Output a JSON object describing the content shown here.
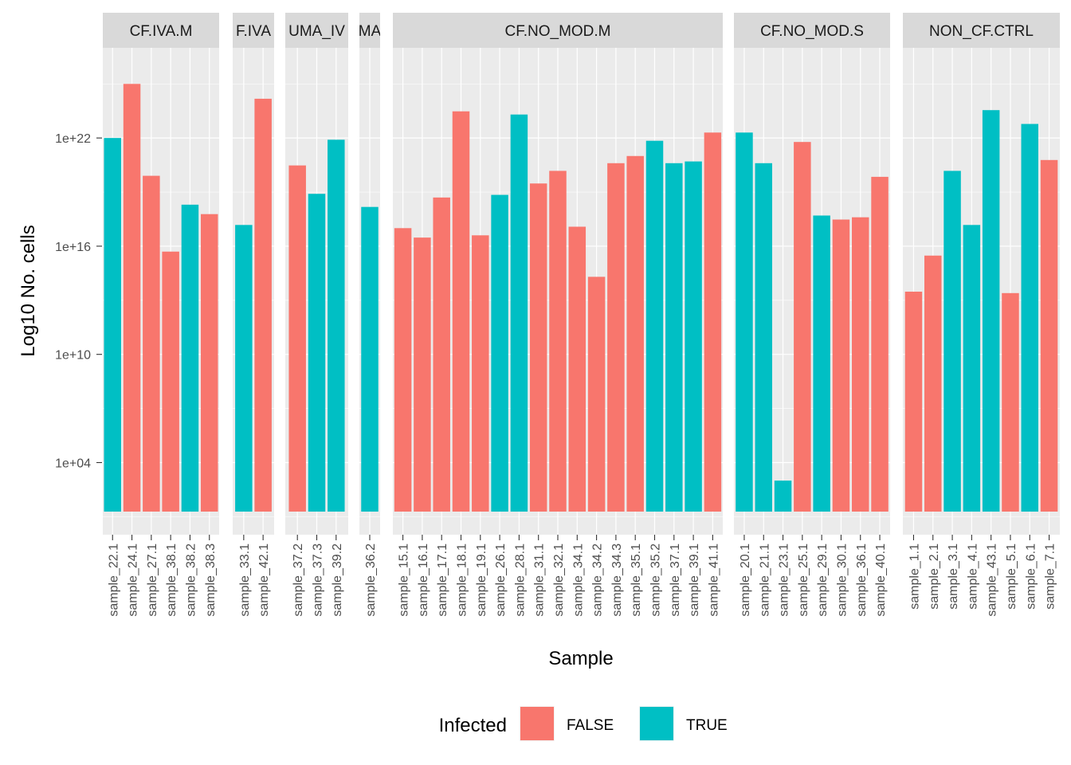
{
  "chart_data": {
    "type": "bar",
    "title": "",
    "xlabel": "Sample",
    "ylabel": "Log10 No. cells",
    "y_scale": "log10",
    "ylim": [
      1,
      1e+27
    ],
    "y_ticks": [
      {
        "value": 10000.0,
        "label": "1e+04"
      },
      {
        "value": 10000000000.0,
        "label": "1e+10"
      },
      {
        "value": 1e+16,
        "label": "1e+16"
      },
      {
        "value": 1e+22,
        "label": "1e+22"
      }
    ],
    "grid": true,
    "legend": {
      "title": "Infected",
      "position": "bottom",
      "entries": [
        {
          "label": "FALSE",
          "color": "#F8766D"
        },
        {
          "label": "TRUE",
          "color": "#00BFC4"
        }
      ]
    },
    "facets": [
      {
        "label": "CF.IVA.M",
        "bars": [
          {
            "sample": "sample_22.1",
            "infected": "TRUE",
            "value": 1e+22
          },
          {
            "sample": "sample_24.1",
            "infected": "FALSE",
            "value": 1e+25
          },
          {
            "sample": "sample_27.1",
            "infected": "FALSE",
            "value": 8e+19
          },
          {
            "sample": "sample_38.1",
            "infected": "FALSE",
            "value": 5000000000000000.0
          },
          {
            "sample": "sample_38.2",
            "infected": "TRUE",
            "value": 2e+18
          },
          {
            "sample": "sample_38.3",
            "infected": "FALSE",
            "value": 6e+17
          }
        ]
      },
      {
        "label": "F.IVA",
        "bars": [
          {
            "sample": "sample_33.1",
            "infected": "TRUE",
            "value": 1.5e+17
          },
          {
            "sample": "sample_42.1",
            "infected": "FALSE",
            "value": 1.5e+24
          }
        ]
      },
      {
        "label": "UMA_IV",
        "bars": [
          {
            "sample": "sample_37.2",
            "infected": "FALSE",
            "value": 3e+20
          },
          {
            "sample": "sample_37.3",
            "infected": "TRUE",
            "value": 8e+18
          },
          {
            "sample": "sample_39.2",
            "infected": "TRUE",
            "value": 8e+21
          }
        ]
      },
      {
        "label": "MA",
        "bars": [
          {
            "sample": "sample_36.2",
            "infected": "TRUE",
            "value": 1.5e+18
          }
        ]
      },
      {
        "label": "CF.NO_MOD.M",
        "bars": [
          {
            "sample": "sample_15.1",
            "infected": "FALSE",
            "value": 1e+17
          },
          {
            "sample": "sample_16.1",
            "infected": "FALSE",
            "value": 3e+16
          },
          {
            "sample": "sample_17.1",
            "infected": "FALSE",
            "value": 5e+18
          },
          {
            "sample": "sample_18.1",
            "infected": "FALSE",
            "value": 3e+23
          },
          {
            "sample": "sample_19.1",
            "infected": "FALSE",
            "value": 4e+16
          },
          {
            "sample": "sample_26.1",
            "infected": "TRUE",
            "value": 7e+18
          },
          {
            "sample": "sample_28.1",
            "infected": "TRUE",
            "value": 2e+23
          },
          {
            "sample": "sample_31.1",
            "infected": "FALSE",
            "value": 3e+19
          },
          {
            "sample": "sample_32.1",
            "infected": "FALSE",
            "value": 1.5e+20
          },
          {
            "sample": "sample_34.1",
            "infected": "FALSE",
            "value": 1.2e+17
          },
          {
            "sample": "sample_34.2",
            "infected": "FALSE",
            "value": 200000000000000.0
          },
          {
            "sample": "sample_34.3",
            "infected": "FALSE",
            "value": 4e+20
          },
          {
            "sample": "sample_35.1",
            "infected": "FALSE",
            "value": 1e+21
          },
          {
            "sample": "sample_35.2",
            "infected": "TRUE",
            "value": 7e+21
          },
          {
            "sample": "sample_37.1",
            "infected": "TRUE",
            "value": 4e+20
          },
          {
            "sample": "sample_39.1",
            "infected": "TRUE",
            "value": 5e+20
          },
          {
            "sample": "sample_41.1",
            "infected": "FALSE",
            "value": 2e+22
          }
        ]
      },
      {
        "label": "CF.NO_MOD.S",
        "bars": [
          {
            "sample": "sample_20.1",
            "infected": "TRUE",
            "value": 2e+22
          },
          {
            "sample": "sample_21.1",
            "infected": "TRUE",
            "value": 4e+20
          },
          {
            "sample": "sample_23.1",
            "infected": "TRUE",
            "value": 1000.0
          },
          {
            "sample": "sample_25.1",
            "infected": "FALSE",
            "value": 6e+21
          },
          {
            "sample": "sample_29.1",
            "infected": "TRUE",
            "value": 5e+17
          },
          {
            "sample": "sample_30.1",
            "infected": "FALSE",
            "value": 3e+17
          },
          {
            "sample": "sample_36.1",
            "infected": "FALSE",
            "value": 4e+17
          },
          {
            "sample": "sample_40.1",
            "infected": "FALSE",
            "value": 7e+19
          }
        ]
      },
      {
        "label": "NON_CF.CTRL",
        "bars": [
          {
            "sample": "sample_1.1",
            "infected": "FALSE",
            "value": 30000000000000.0
          },
          {
            "sample": "sample_2.1",
            "infected": "FALSE",
            "value": 3000000000000000.0
          },
          {
            "sample": "sample_3.1",
            "infected": "TRUE",
            "value": 1.5e+20
          },
          {
            "sample": "sample_4.1",
            "infected": "TRUE",
            "value": 1.5e+17
          },
          {
            "sample": "sample_43.1",
            "infected": "TRUE",
            "value": 3.5e+23
          },
          {
            "sample": "sample_5.1",
            "infected": "FALSE",
            "value": 25000000000000.0
          },
          {
            "sample": "sample_6.1",
            "infected": "TRUE",
            "value": 6e+22
          },
          {
            "sample": "sample_7.1",
            "infected": "FALSE",
            "value": 6e+20
          }
        ]
      }
    ]
  }
}
